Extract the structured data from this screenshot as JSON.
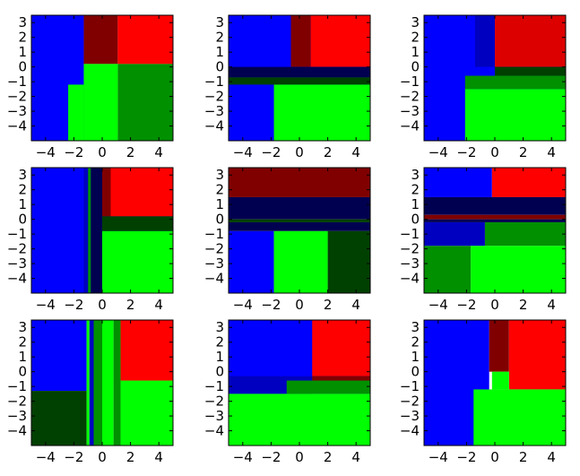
{
  "figure": {
    "rows": 3,
    "cols": 3,
    "xlim": [
      -5,
      5
    ],
    "ylim": [
      -5,
      3.5
    ],
    "xticks": [
      "−4",
      "−2",
      "0",
      "2",
      "4"
    ],
    "xtick_values": [
      -4,
      -2,
      0,
      2,
      4
    ],
    "yticks": [
      "3",
      "2",
      "1",
      "0",
      "−1",
      "−2",
      "−3",
      "−4"
    ],
    "ytick_values": [
      3,
      2,
      1,
      0,
      -1,
      -2,
      -3,
      -4
    ]
  },
  "colors": {
    "blue": "#0000ff",
    "red": "#ff0000",
    "dark_red": "#800000",
    "green": "#00ff00",
    "mid_green": "#009000",
    "dark_green": "#004000",
    "navy": "#000050",
    "mid_blue": "#0000c0",
    "bright_red2": "#dd0000"
  },
  "chart_data": [
    {
      "type": "heatmap",
      "title": "",
      "regions": [
        {
          "x": [
            -5,
            -1.3
          ],
          "y": [
            -5,
            3.5
          ],
          "color": "blue"
        },
        {
          "x": [
            -1.3,
            1.1
          ],
          "y": [
            0.2,
            3.5
          ],
          "color": "dark_red"
        },
        {
          "x": [
            1.1,
            5
          ],
          "y": [
            0.2,
            3.5
          ],
          "color": "red"
        },
        {
          "x": [
            -2.4,
            -1.3
          ],
          "y": [
            -5,
            -1.2
          ],
          "color": "green"
        },
        {
          "x": [
            -1.3,
            1.1
          ],
          "y": [
            -5,
            0.2
          ],
          "color": "green"
        },
        {
          "x": [
            1.1,
            5
          ],
          "y": [
            -5,
            0.2
          ],
          "color": "mid_green"
        }
      ]
    },
    {
      "type": "heatmap",
      "title": "",
      "regions": [
        {
          "x": [
            -5,
            5
          ],
          "y": [
            -5,
            3.5
          ],
          "color": "blue"
        },
        {
          "x": [
            -0.6,
            0.8
          ],
          "y": [
            0,
            3.5
          ],
          "color": "dark_red"
        },
        {
          "x": [
            0.8,
            5
          ],
          "y": [
            0,
            3.5
          ],
          "color": "red"
        },
        {
          "x": [
            -5,
            5
          ],
          "y": [
            -0.7,
            0
          ],
          "color": "navy"
        },
        {
          "x": [
            -5,
            5
          ],
          "y": [
            -1.2,
            -0.7
          ],
          "color": "dark_green"
        },
        {
          "x": [
            -1.8,
            5
          ],
          "y": [
            -5,
            -1.2
          ],
          "color": "green"
        }
      ]
    },
    {
      "type": "heatmap",
      "title": "",
      "regions": [
        {
          "x": [
            -5,
            5
          ],
          "y": [
            -5,
            3.5
          ],
          "color": "blue"
        },
        {
          "x": [
            -1.4,
            0
          ],
          "y": [
            0,
            3.5
          ],
          "color": "mid_blue"
        },
        {
          "x": [
            0,
            5
          ],
          "y": [
            0,
            3.5
          ],
          "color": "bright_red2"
        },
        {
          "x": [
            0,
            5
          ],
          "y": [
            -0.6,
            0
          ],
          "color": "dark_green"
        },
        {
          "x": [
            -2.1,
            5
          ],
          "y": [
            -1.5,
            -0.6
          ],
          "color": "mid_green"
        },
        {
          "x": [
            -2.1,
            5
          ],
          "y": [
            -5,
            -1.5
          ],
          "color": "green"
        }
      ]
    },
    {
      "type": "heatmap",
      "title": "",
      "regions": [
        {
          "x": [
            -5,
            5
          ],
          "y": [
            -5,
            3.5
          ],
          "color": "blue"
        },
        {
          "x": [
            -1.3,
            -1.0
          ],
          "y": [
            -5,
            3.5
          ],
          "color": "mid_blue"
        },
        {
          "x": [
            -1.0,
            -0.8
          ],
          "y": [
            -5,
            3.5
          ],
          "color": "mid_green"
        },
        {
          "x": [
            -0.8,
            0
          ],
          "y": [
            -5,
            3.5
          ],
          "color": "navy"
        },
        {
          "x": [
            0,
            0.6
          ],
          "y": [
            0.2,
            3.5
          ],
          "color": "dark_red"
        },
        {
          "x": [
            0.6,
            5
          ],
          "y": [
            0.2,
            3.5
          ],
          "color": "red"
        },
        {
          "x": [
            0,
            5
          ],
          "y": [
            -0.8,
            0.2
          ],
          "color": "dark_green"
        },
        {
          "x": [
            0,
            5
          ],
          "y": [
            -5,
            -0.8
          ],
          "color": "green"
        }
      ]
    },
    {
      "type": "heatmap",
      "title": "",
      "regions": [
        {
          "x": [
            -5,
            5
          ],
          "y": [
            1.5,
            3.5
          ],
          "color": "dark_red"
        },
        {
          "x": [
            -5,
            5
          ],
          "y": [
            0,
            1.5
          ],
          "color": "navy"
        },
        {
          "x": [
            -5,
            5
          ],
          "y": [
            -0.2,
            0
          ],
          "color": "dark_green"
        },
        {
          "x": [
            -5,
            5
          ],
          "y": [
            -0.8,
            -0.2
          ],
          "color": "navy"
        },
        {
          "x": [
            -5,
            -1.8
          ],
          "y": [
            -5,
            -0.8
          ],
          "color": "blue"
        },
        {
          "x": [
            -1.8,
            2
          ],
          "y": [
            -5,
            -0.8
          ],
          "color": "green"
        },
        {
          "x": [
            2,
            5
          ],
          "y": [
            -5,
            -0.8
          ],
          "color": "dark_green"
        }
      ]
    },
    {
      "type": "heatmap",
      "title": "",
      "regions": [
        {
          "x": [
            -5,
            -0.2
          ],
          "y": [
            1.5,
            3.5
          ],
          "color": "blue"
        },
        {
          "x": [
            -0.2,
            5
          ],
          "y": [
            1.5,
            3.5
          ],
          "color": "red"
        },
        {
          "x": [
            -5,
            5
          ],
          "y": [
            0.3,
            1.5
          ],
          "color": "navy"
        },
        {
          "x": [
            -5,
            5
          ],
          "y": [
            0,
            0.3
          ],
          "color": "dark_red"
        },
        {
          "x": [
            -5,
            5
          ],
          "y": [
            -0.2,
            0
          ],
          "color": "navy"
        },
        {
          "x": [
            -5,
            -0.7
          ],
          "y": [
            -1.8,
            -0.2
          ],
          "color": "mid_blue"
        },
        {
          "x": [
            -0.7,
            5
          ],
          "y": [
            -1.8,
            -0.2
          ],
          "color": "mid_green"
        },
        {
          "x": [
            -5,
            -1.7
          ],
          "y": [
            -5,
            -1.8
          ],
          "color": "mid_green"
        },
        {
          "x": [
            -1.7,
            5
          ],
          "y": [
            -5,
            -1.8
          ],
          "color": "green"
        }
      ]
    },
    {
      "type": "heatmap",
      "title": "",
      "regions": [
        {
          "x": [
            -5,
            -1.1
          ],
          "y": [
            -1.3,
            3.5
          ],
          "color": "blue"
        },
        {
          "x": [
            -5,
            -1.1
          ],
          "y": [
            -5,
            -1.3
          ],
          "color": "dark_green"
        },
        {
          "x": [
            -1.1,
            -0.9
          ],
          "y": [
            -5,
            3.5
          ],
          "color": "green"
        },
        {
          "x": [
            -0.9,
            -0.6
          ],
          "y": [
            -5,
            3.5
          ],
          "color": "mid_blue"
        },
        {
          "x": [
            -0.6,
            0
          ],
          "y": [
            -5,
            3.5
          ],
          "color": "mid_green"
        },
        {
          "x": [
            0,
            0.8
          ],
          "y": [
            -5,
            3.5
          ],
          "color": "green"
        },
        {
          "x": [
            0.8,
            1.3
          ],
          "y": [
            -5,
            3.5
          ],
          "color": "mid_green"
        },
        {
          "x": [
            1.3,
            5
          ],
          "y": [
            -0.6,
            3.5
          ],
          "color": "red"
        },
        {
          "x": [
            1.3,
            5
          ],
          "y": [
            -5,
            -0.6
          ],
          "color": "green"
        }
      ]
    },
    {
      "type": "heatmap",
      "title": "",
      "regions": [
        {
          "x": [
            -5,
            5
          ],
          "y": [
            -1.5,
            3.5
          ],
          "color": "blue"
        },
        {
          "x": [
            0.9,
            5
          ],
          "y": [
            -0.3,
            3.5
          ],
          "color": "red"
        },
        {
          "x": [
            -5,
            0.9
          ],
          "y": [
            -1.5,
            -0.3
          ],
          "color": "mid_blue"
        },
        {
          "x": [
            0.9,
            5
          ],
          "y": [
            -0.6,
            -0.3
          ],
          "color": "dark_red"
        },
        {
          "x": [
            -0.9,
            5
          ],
          "y": [
            -1.5,
            -0.6
          ],
          "color": "mid_green"
        },
        {
          "x": [
            -5,
            5
          ],
          "y": [
            -5,
            -1.5
          ],
          "color": "green"
        }
      ]
    },
    {
      "type": "heatmap",
      "title": "",
      "regions": [
        {
          "x": [
            -5,
            -0.4
          ],
          "y": [
            -5,
            3.5
          ],
          "color": "blue"
        },
        {
          "x": [
            -0.4,
            1.0
          ],
          "y": [
            0,
            3.5
          ],
          "color": "dark_red"
        },
        {
          "x": [
            1.0,
            5
          ],
          "y": [
            -1.2,
            3.5
          ],
          "color": "red"
        },
        {
          "x": [
            -0.2,
            1.0
          ],
          "y": [
            -1.2,
            0
          ],
          "color": "green"
        },
        {
          "x": [
            -1.5,
            5
          ],
          "y": [
            -5,
            -1.2
          ],
          "color": "green"
        }
      ]
    }
  ]
}
